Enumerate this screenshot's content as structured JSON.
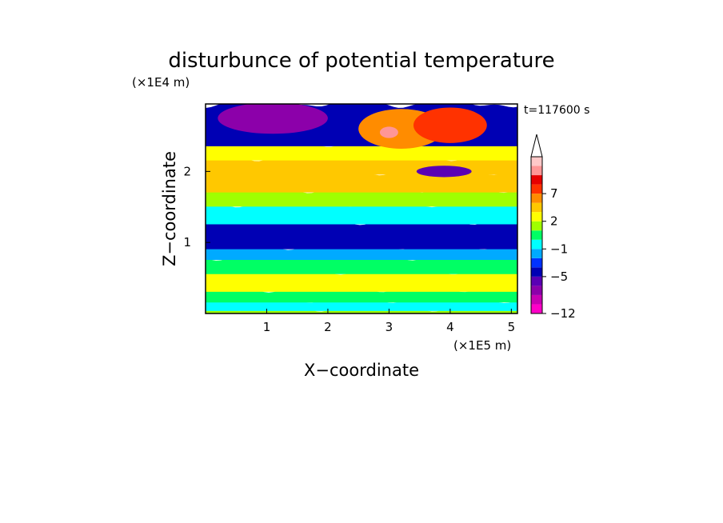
{
  "chart_data": {
    "type": "heatmap",
    "title": "disturbunce of potential temperature",
    "xlabel": "X−coordinate",
    "ylabel": "Z−coordinate",
    "x_unit": "(×1E5 m)",
    "y_unit": "(×1E4 m)",
    "time_label": "t=117600 s",
    "xlim": [
      0,
      5.1
    ],
    "ylim": [
      0,
      2.95
    ],
    "x_ticks": [
      1,
      2,
      3,
      4,
      5
    ],
    "y_ticks": [
      1,
      2
    ],
    "colorbar": {
      "levels": [
        -12,
        -11,
        -9,
        -7,
        -5,
        -3,
        -2,
        -1,
        0,
        1,
        2,
        3,
        5,
        7,
        9,
        11,
        13
      ],
      "tick_labels": [
        "−12",
        "−5",
        "−1",
        "2",
        "7"
      ],
      "tick_values": [
        -12,
        -5,
        -1,
        2,
        7
      ],
      "colors": [
        "#ff00c8",
        "#c800b4",
        "#8c00aa",
        "#5a00b4",
        "#0000b4",
        "#0032ff",
        "#00aaff",
        "#00ffff",
        "#00ff64",
        "#a0ff00",
        "#ffff00",
        "#ffc800",
        "#ff8c00",
        "#ff3200",
        "#e60000",
        "#ff9696",
        "#ffc8c8"
      ],
      "extend": "max"
    },
    "field_bands": [
      {
        "z_range": [
          0.0,
          0.08
        ],
        "value": 1.5
      },
      {
        "z_range": [
          0.08,
          0.2
        ],
        "value": -0.5
      },
      {
        "z_range": [
          0.2,
          0.35
        ],
        "value": 0.5
      },
      {
        "z_range": [
          0.35,
          0.6
        ],
        "value": 2.5
      },
      {
        "z_range": [
          0.6,
          0.8
        ],
        "value": 0.5
      },
      {
        "z_range": [
          0.8,
          0.95
        ],
        "value": -1.5
      },
      {
        "z_range": [
          0.95,
          1.3
        ],
        "value": -4
      },
      {
        "z_range": [
          1.3,
          1.55
        ],
        "value": -0.5
      },
      {
        "z_range": [
          1.55,
          1.75
        ],
        "value": 1.5
      },
      {
        "z_range": [
          1.75,
          2.0
        ],
        "value": 3
      },
      {
        "z_range": [
          2.0,
          2.2
        ],
        "value": 4.5
      },
      {
        "z_range": [
          2.2,
          2.4
        ],
        "value": 2.5
      },
      {
        "z_range": [
          2.4,
          2.95
        ],
        "value": -5
      }
    ],
    "features": [
      {
        "x": 1.1,
        "z": 2.75,
        "rx": 0.9,
        "rz": 0.22,
        "value": -9
      },
      {
        "x": 3.2,
        "z": 2.6,
        "rx": 0.7,
        "rz": 0.28,
        "value": 6
      },
      {
        "x": 4.0,
        "z": 2.65,
        "rx": 0.6,
        "rz": 0.25,
        "value": 7
      },
      {
        "x": 3.0,
        "z": 2.55,
        "rx": 0.15,
        "rz": 0.08,
        "value": 11
      },
      {
        "x": 3.9,
        "z": 2.0,
        "rx": 0.45,
        "rz": 0.08,
        "value": -7
      }
    ]
  }
}
